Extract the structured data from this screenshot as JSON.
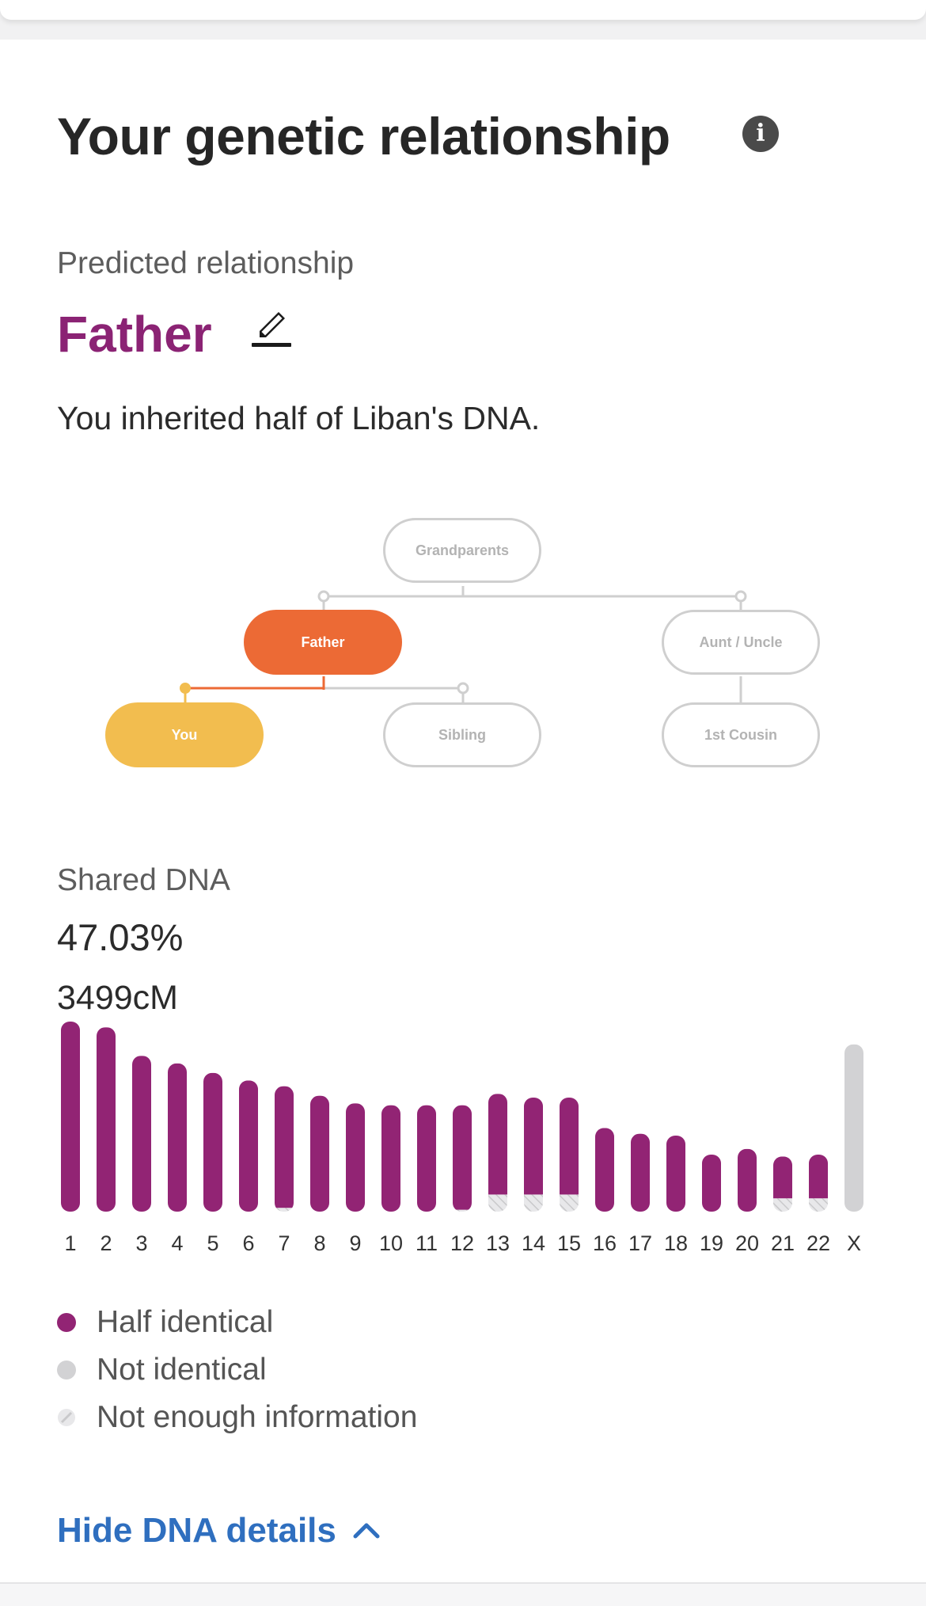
{
  "header": {
    "title": "Your genetic relationship",
    "info_icon": "info-icon"
  },
  "prediction": {
    "label": "Predicted relationship",
    "relationship": "Father",
    "edit_icon": "pencil-icon",
    "inherit_text": "You inherited half of Liban's DNA."
  },
  "tree": {
    "grandparents": "Grandparents",
    "father": "Father",
    "aunt_uncle": "Aunt / Uncle",
    "you": "You",
    "sibling": "Sibling",
    "first_cousin": "1st Cousin"
  },
  "shared": {
    "label": "Shared DNA",
    "percent": "47.03%",
    "cm": "3499cM"
  },
  "colors": {
    "relationship": "#8b2374",
    "half_identical": "#922474",
    "not_identical": "#d2d2d4",
    "father_node": "#ec6a35",
    "you_node": "#f2bd4f",
    "link": "#2f6fbf"
  },
  "chart_data": {
    "type": "bar",
    "categories": [
      "1",
      "2",
      "3",
      "4",
      "5",
      "6",
      "7",
      "8",
      "9",
      "10",
      "11",
      "12",
      "13",
      "14",
      "15",
      "16",
      "17",
      "18",
      "19",
      "20",
      "21",
      "22",
      "X"
    ],
    "half_identical": [
      100,
      97,
      82,
      78,
      73,
      69,
      64,
      61,
      57,
      56,
      56,
      55,
      53,
      51,
      51,
      44,
      41,
      40,
      30,
      33,
      22,
      23,
      0
    ],
    "not_enough_information": [
      0,
      0,
      0,
      0,
      0,
      0,
      2,
      0,
      0,
      0,
      0,
      1,
      9,
      9,
      9,
      0,
      0,
      0,
      0,
      0,
      7,
      7,
      0
    ],
    "not_identical": [
      0,
      0,
      0,
      0,
      0,
      0,
      0,
      0,
      0,
      0,
      0,
      0,
      0,
      0,
      0,
      0,
      0,
      0,
      0,
      0,
      0,
      0,
      88
    ],
    "ylim": [
      0,
      100
    ]
  },
  "legend": [
    {
      "label": "Half identical",
      "color": "#922474",
      "kind": "solid"
    },
    {
      "label": "Not identical",
      "color": "#d2d2d4",
      "kind": "solid"
    },
    {
      "label": "Not enough information",
      "color": "#e4e4e6",
      "kind": "hatched"
    }
  ],
  "footer": {
    "hide_label": "Hide DNA details",
    "chevron_icon": "chevron-up-icon"
  }
}
